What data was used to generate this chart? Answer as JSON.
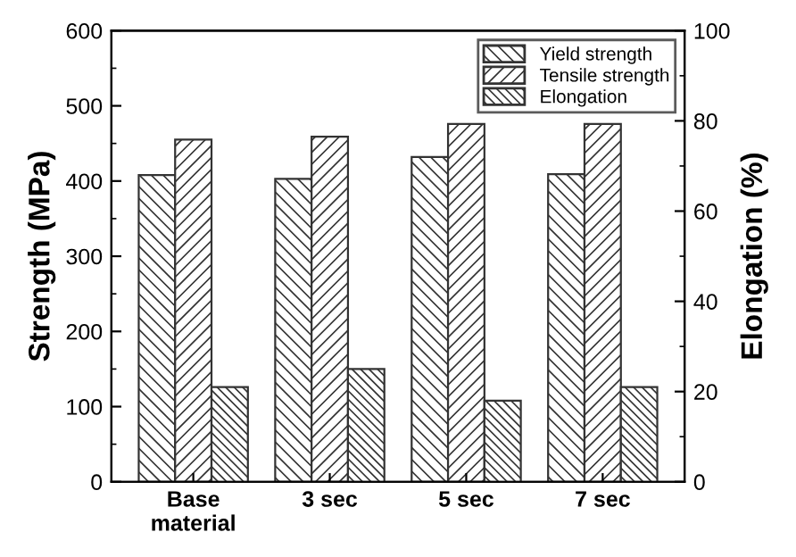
{
  "chart_data": {
    "type": "bar",
    "ylabel": "Strength (MPa)",
    "y2label": "Elongation (%)",
    "categories": [
      "Base\nmaterial",
      "3 sec",
      "5 sec",
      "7 sec"
    ],
    "series": [
      {
        "name": "Yield strength",
        "color": "#333333",
        "values": [
          408,
          403,
          432,
          409
        ]
      },
      {
        "name": "Tensile strength",
        "color": "#333333",
        "values": [
          455,
          459,
          476,
          476
        ]
      },
      {
        "name": "Elongation",
        "color": "#333333",
        "values": [
          21,
          25,
          18,
          21
        ],
        "axis": "y2"
      }
    ],
    "ylim": [
      0,
      600
    ],
    "yticks": [
      0,
      100,
      200,
      300,
      400,
      500,
      600
    ],
    "y2lim": [
      0,
      100
    ],
    "y2ticks": [
      0,
      20,
      40,
      60,
      80,
      100
    ],
    "legend": "top right",
    "grid": false
  }
}
